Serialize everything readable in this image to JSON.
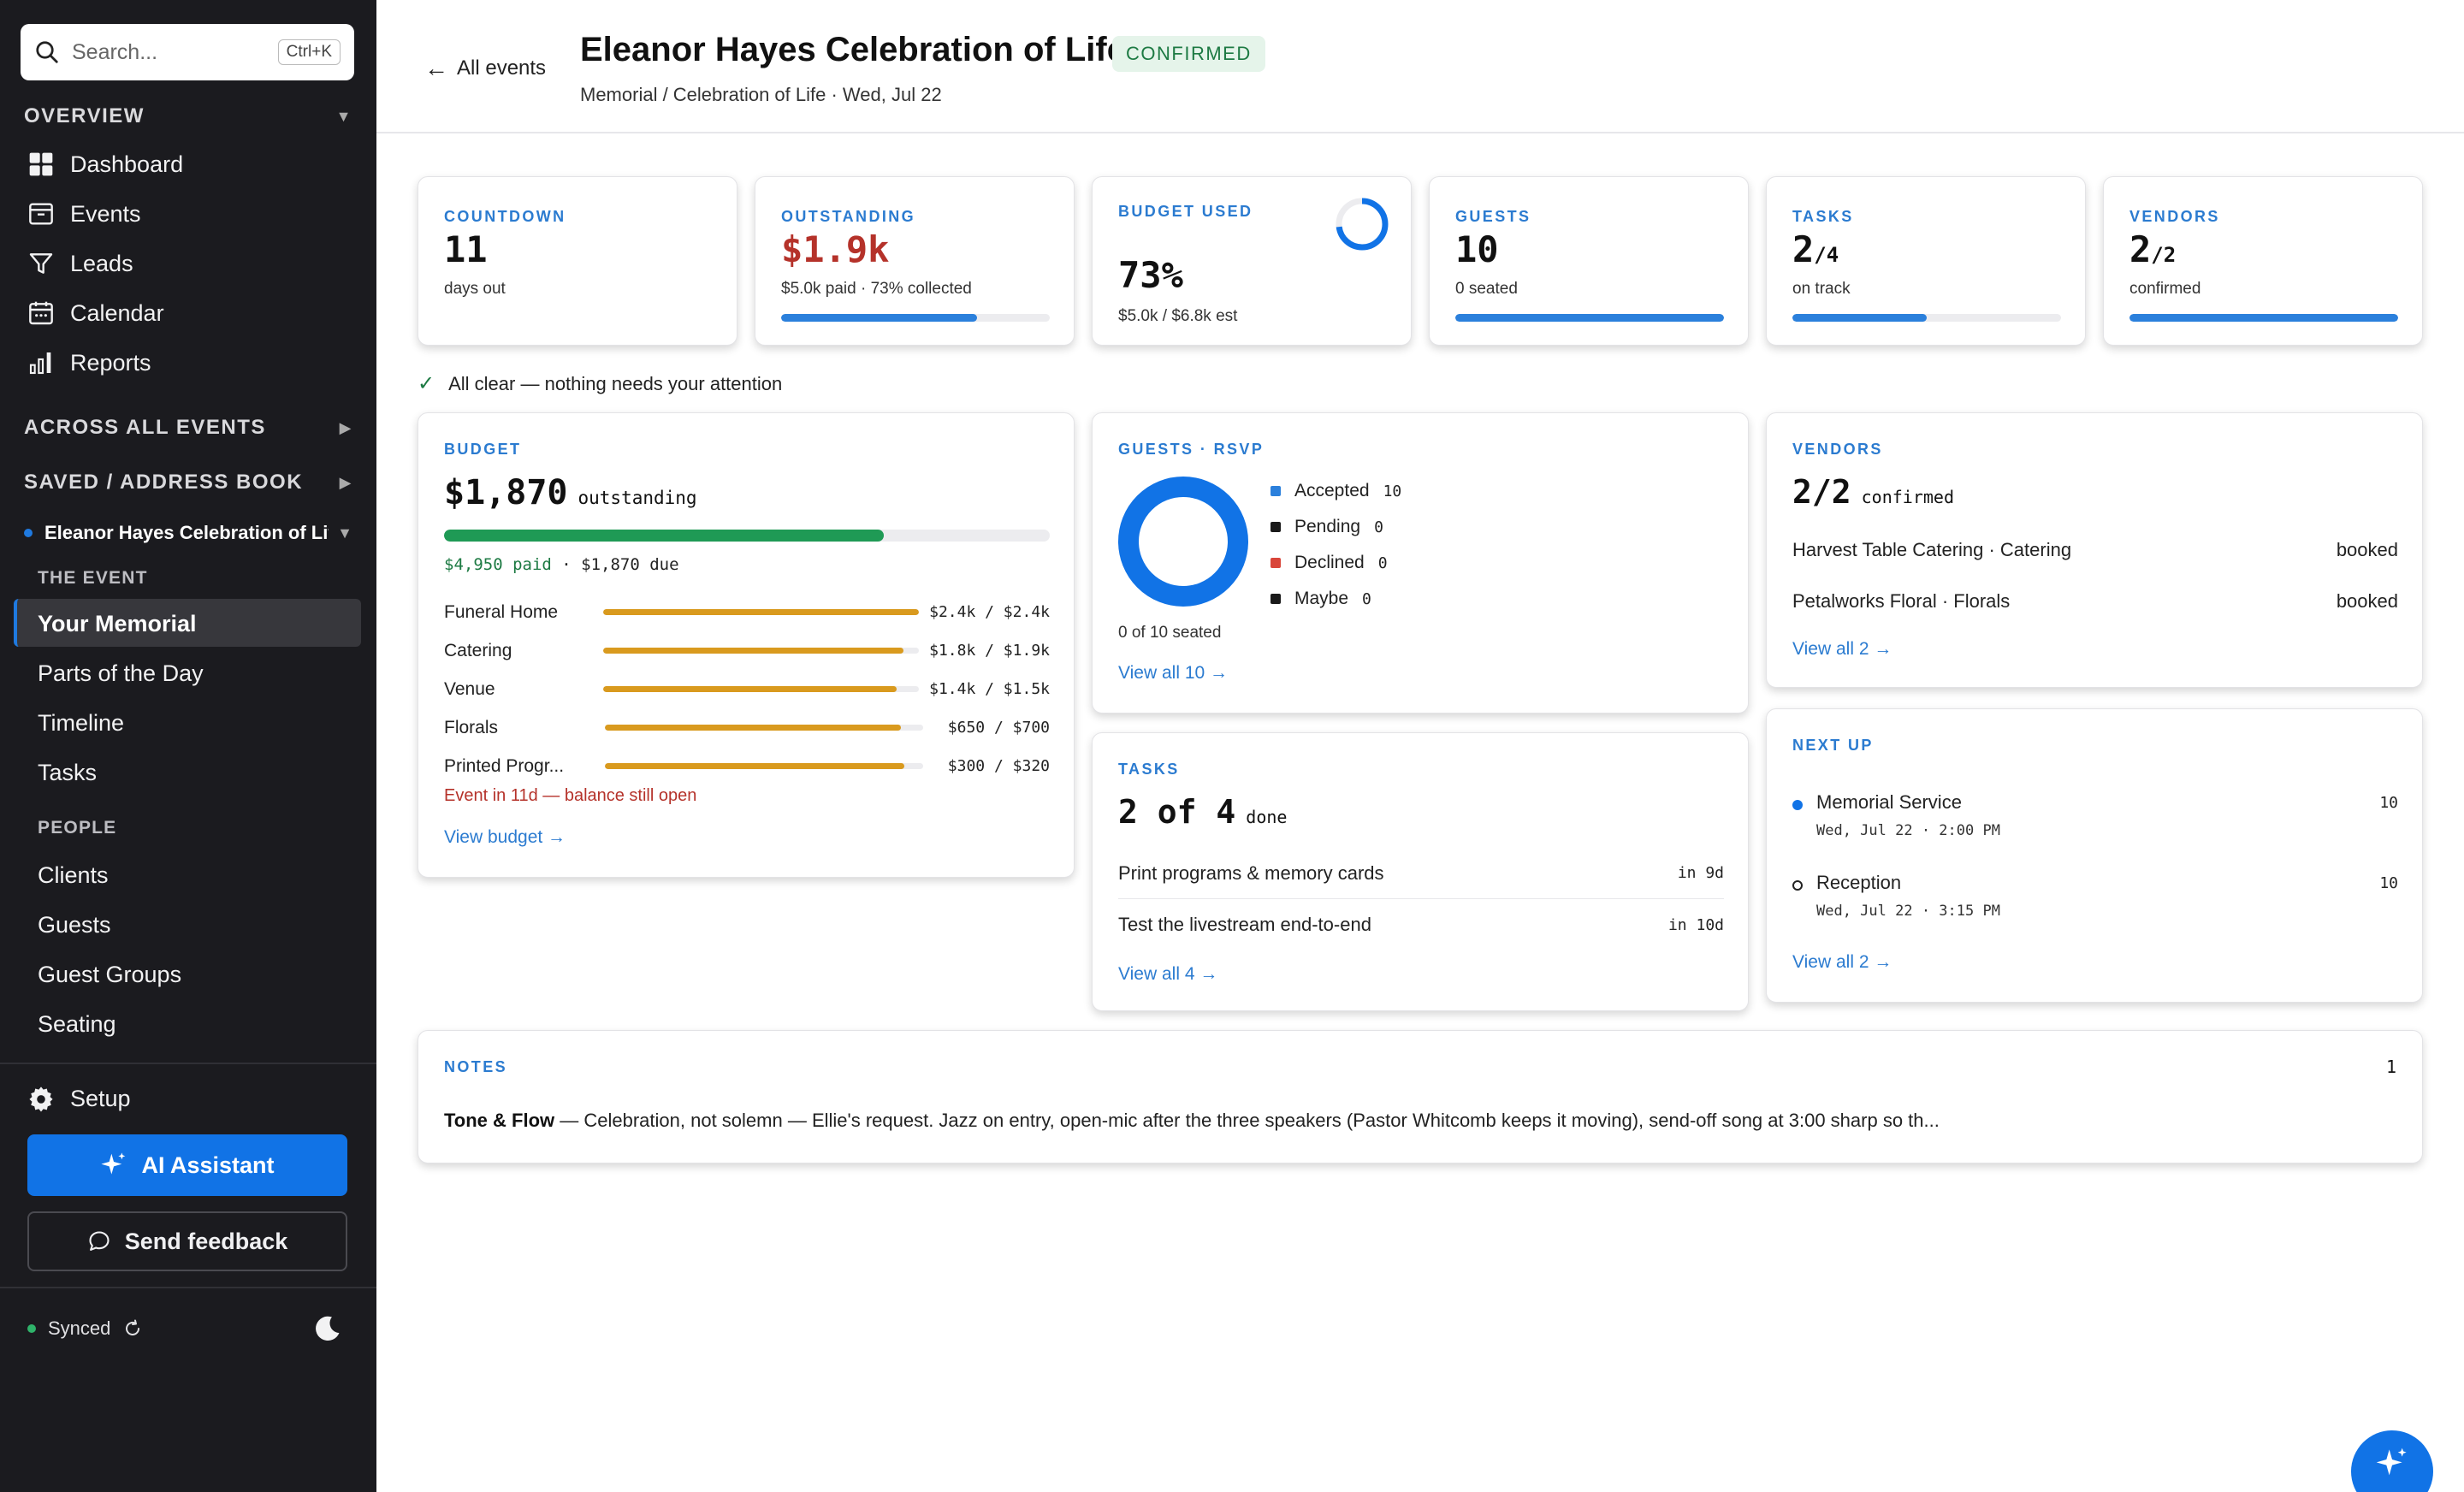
{
  "colors": {
    "accent": "#1173e6",
    "success": "#1d7a43",
    "danger": "#b5322a",
    "budget_bar": "#d99a1e",
    "sidebar_bg": "#1b1b1f"
  },
  "sidebar": {
    "search": {
      "placeholder": "Search...",
      "shortcut": "Ctrl+K"
    },
    "overview_label": "OVERVIEW",
    "overview_items": [
      {
        "label": "Dashboard",
        "icon": "grid-icon"
      },
      {
        "label": "Events",
        "icon": "archive-icon"
      },
      {
        "label": "Leads",
        "icon": "funnel-icon"
      },
      {
        "label": "Calendar",
        "icon": "calendar-icon"
      },
      {
        "label": "Reports",
        "icon": "bar-chart-icon"
      }
    ],
    "across_label": "ACROSS ALL EVENTS",
    "saved_label": "SAVED / ADDRESS BOOK",
    "current_event": "Eleanor Hayes Celebration of Life",
    "event_section_label": "THE EVENT",
    "event_items": [
      "Your Memorial",
      "Parts of the Day",
      "Timeline",
      "Tasks"
    ],
    "people_label": "PEOPLE",
    "people_items": [
      "Clients",
      "Guests",
      "Guest Groups",
      "Seating"
    ],
    "setup_label": "Setup",
    "ai_label": "AI Assistant",
    "feedback_label": "Send feedback",
    "sync_label": "Synced"
  },
  "header": {
    "back_label": "All events",
    "title": "Eleanor Hayes Celebration of Life",
    "status": "CONFIRMED",
    "subtitle": "Memorial / Celebration of Life · Wed, Jul 22"
  },
  "stats": {
    "countdown": {
      "label": "COUNTDOWN",
      "value": "11",
      "sub": "days out"
    },
    "outstanding": {
      "label": "OUTSTANDING",
      "value": "$1.9k",
      "sub": "$5.0k paid · 73% collected",
      "progress": 0.73
    },
    "budget_used": {
      "label": "BUDGET USED",
      "value": "73%",
      "sub": "$5.0k / $6.8k est",
      "ring_fraction": 0.73
    },
    "guests": {
      "label": "GUESTS",
      "value": "10",
      "sub": "0 seated",
      "progress": 1.0
    },
    "tasks": {
      "label": "TASKS",
      "value": "2",
      "total": "/4",
      "sub": "on track",
      "progress": 0.5
    },
    "vendors": {
      "label": "VENDORS",
      "value": "2",
      "total": "/2",
      "sub": "confirmed",
      "progress": 1.0
    }
  },
  "all_clear": "All clear — nothing needs your attention",
  "budget": {
    "label": "BUDGET",
    "amount": "$1,870",
    "amount_suffix": "outstanding",
    "paid_fraction": 0.726,
    "paid": "$4,950 paid",
    "due": "· $1,870 due",
    "lines": [
      {
        "name": "Funeral Home",
        "amount": "$2.4k / $2.4k",
        "fraction": 1.0
      },
      {
        "name": "Catering",
        "amount": "$1.8k / $1.9k",
        "fraction": 0.95
      },
      {
        "name": "Venue",
        "amount": "$1.4k / $1.5k",
        "fraction": 0.93
      },
      {
        "name": "Florals",
        "amount": "$650 / $700",
        "fraction": 0.93
      },
      {
        "name": "Printed Progr...",
        "amount": "$300 / $320",
        "fraction": 0.94
      }
    ],
    "warning": "Event in 11d — balance still open",
    "link": "View budget →"
  },
  "rsvp": {
    "label": "GUESTS · RSVP",
    "legend": [
      {
        "name": "Accepted",
        "count": "10",
        "color": "#2b80dc"
      },
      {
        "name": "Pending",
        "count": "0",
        "color": "#1a1a1a"
      },
      {
        "name": "Declined",
        "count": "0",
        "color": "#d9463a"
      },
      {
        "name": "Maybe",
        "count": "0",
        "color": "#1a1a1a"
      }
    ],
    "seated": "0 of 10 seated",
    "link": "View all 10 →"
  },
  "vendors_card": {
    "label": "VENDORS",
    "count": "2/2",
    "suffix": "confirmed",
    "items": [
      {
        "name": "Harvest Table Catering · Catering",
        "status": "booked"
      },
      {
        "name": "Petalworks Floral · Florals",
        "status": "booked"
      }
    ],
    "link": "View all 2 →"
  },
  "tasks_card": {
    "label": "TASKS",
    "count": "2 of 4",
    "suffix": "done",
    "items": [
      {
        "name": "Print programs & memory cards",
        "due": "in 9d"
      },
      {
        "name": "Test the livestream end-to-end",
        "due": "in 10d"
      }
    ],
    "link": "View all 4 →"
  },
  "next_up": {
    "label": "NEXT UP",
    "items": [
      {
        "name": "Memorial Service",
        "when": "Wed, Jul 22 · 2:00 PM",
        "count": "10"
      },
      {
        "name": "Reception",
        "when": "Wed, Jul 22 · 3:15 PM",
        "count": "10"
      }
    ],
    "link": "View all 2 →"
  },
  "notes": {
    "label": "NOTES",
    "count": "1",
    "title": "Tone & Flow",
    "body": " — Celebration, not solemn — Ellie's request. Jazz on entry, open-mic after the three speakers (Pastor Whitcomb keeps it moving), send-off song at 3:00 sharp so th..."
  }
}
